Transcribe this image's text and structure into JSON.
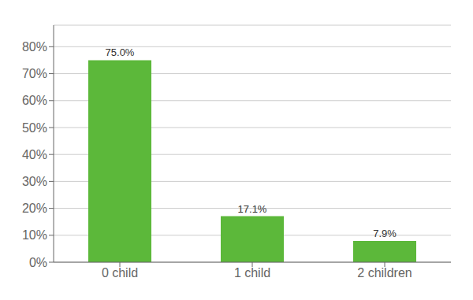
{
  "chart_data": {
    "type": "bar",
    "categories": [
      "0 child",
      "1 child",
      "2 children"
    ],
    "values": [
      75.0,
      17.1,
      7.9
    ],
    "value_labels": [
      "75.0%",
      "17.1%",
      "7.9%"
    ],
    "color": "#5cb83a",
    "ylim": [
      0,
      88
    ],
    "yticks": [
      {
        "value": 0,
        "label": "0%"
      },
      {
        "value": 10,
        "label": "10%"
      },
      {
        "value": 20,
        "label": "20%"
      },
      {
        "value": 30,
        "label": "30%"
      },
      {
        "value": 40,
        "label": "40%"
      },
      {
        "value": 50,
        "label": "50%"
      },
      {
        "value": 60,
        "label": "60%"
      },
      {
        "value": 70,
        "label": "70%"
      },
      {
        "value": 80,
        "label": "80%"
      }
    ],
    "grid": true,
    "data_labels": true
  }
}
